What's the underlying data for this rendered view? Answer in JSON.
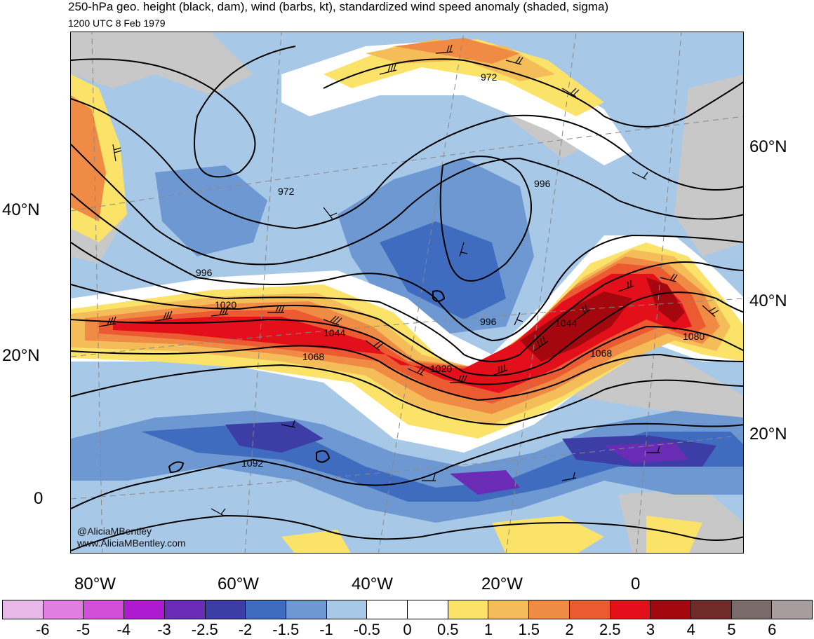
{
  "header": {
    "title": "250-hPa geo. height (black, dam), wind (barbs, kt), standardized wind speed anomaly (shaded, sigma)",
    "subtitle": "1200 UTC 8 Feb 1979"
  },
  "map": {
    "left_lat_labels": [
      "40°N",
      "20°N",
      "0"
    ],
    "right_lat_labels": [
      "60°N",
      "40°N",
      "20°N"
    ],
    "lon_labels": [
      "80°W",
      "60°W",
      "40°W",
      "20°W",
      "0"
    ],
    "contour_labels": [
      "972",
      "972",
      "996",
      "996",
      "996",
      "1020",
      "1020",
      "1044",
      "1044",
      "1068",
      "1068",
      "1080",
      "1092"
    ],
    "credit_handle": "@AliciaMBentley",
    "credit_url": "www.AliciaMBentley.com"
  },
  "colorbar": {
    "ticks": [
      "-6",
      "-5",
      "-4",
      "-3",
      "-2.5",
      "-2",
      "-1.5",
      "-1",
      "-0.5",
      "0",
      "0.5",
      "1",
      "1.5",
      "2",
      "2.5",
      "3",
      "4",
      "5",
      "6"
    ],
    "colors": [
      "#e8b9e8",
      "#e07fe0",
      "#d44fd8",
      "#ad1ad0",
      "#6a2bb5",
      "#3c3ea6",
      "#3f6cbf",
      "#6e98d2",
      "#a8c8e8",
      "#ffffff",
      "#ffffff",
      "#fbe36a",
      "#f4bd5a",
      "#f08b45",
      "#ec5a32",
      "#e3101b",
      "#a5070f",
      "#6f2b28",
      "#7a6b6a",
      "#a89d9d"
    ]
  }
}
